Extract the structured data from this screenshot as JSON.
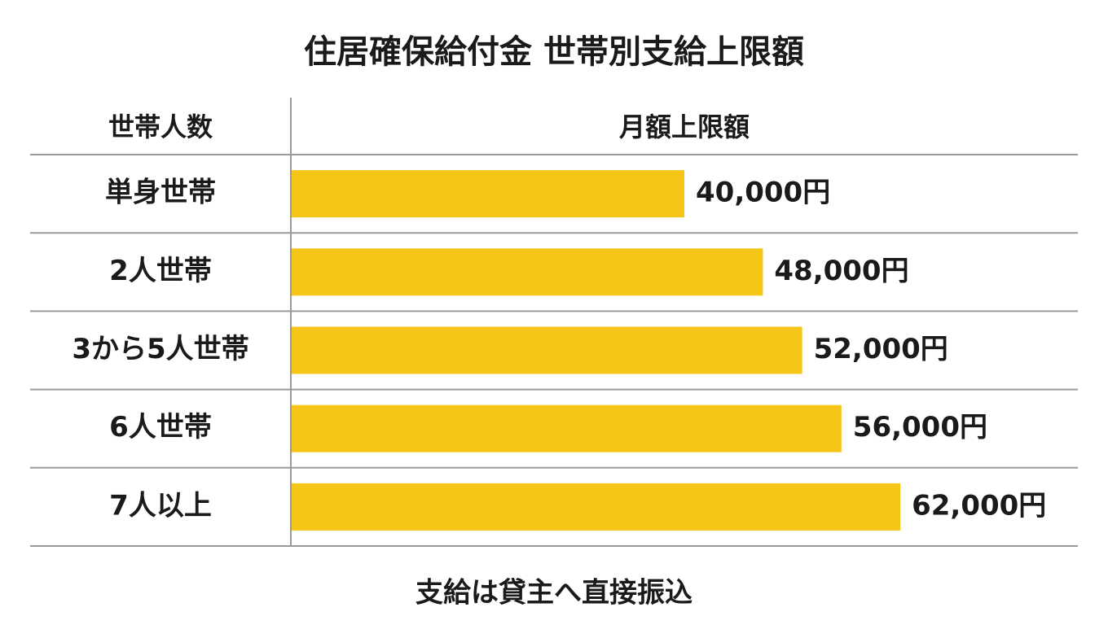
{
  "chart_data": {
    "type": "bar",
    "title": "住居確保給付金 世帯別支給上限額",
    "column_headers": [
      "世帯人数",
      "月額上限額"
    ],
    "categories": [
      "単身世帯",
      "2人世帯",
      "3から5人世帯",
      "6人世帯",
      "7人以上"
    ],
    "values": [
      40000,
      48000,
      52000,
      56000,
      62000
    ],
    "value_labels": [
      "40,000円",
      "48,000円",
      "52,000円",
      "56,000円",
      "62,000円"
    ],
    "color": "#f5c518",
    "note": "支給は貸主へ直接振込"
  }
}
